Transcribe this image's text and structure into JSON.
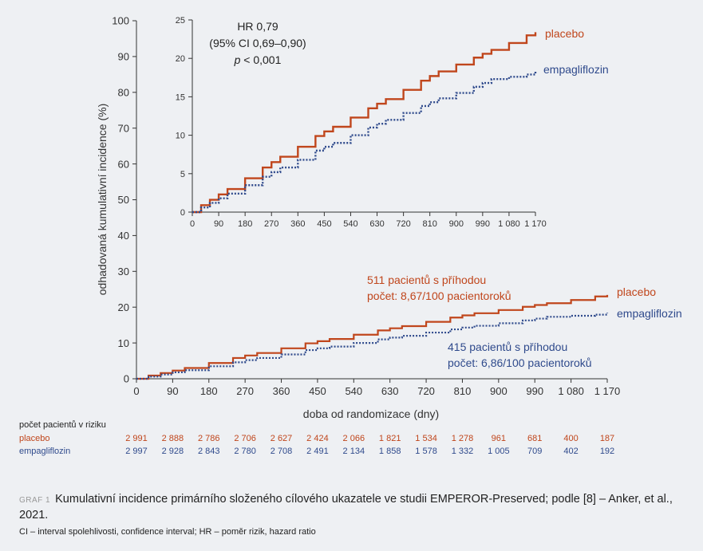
{
  "chart_data": [
    {
      "type": "line",
      "ylabel": "odhadovaná kumulativní incidence (%)",
      "xlabel": "doba od randomizace (dny)",
      "xlim": [
        0,
        1170
      ],
      "ylim": [
        0,
        100
      ],
      "xticks": [
        "0",
        "90",
        "180",
        "270",
        "360",
        "450",
        "540",
        "630",
        "720",
        "810",
        "900",
        "990",
        "1 080",
        "1 170"
      ],
      "yticks": [
        "0",
        "10",
        "20",
        "30",
        "40",
        "50",
        "60",
        "70",
        "80",
        "90",
        "100"
      ],
      "series": [
        {
          "name": "placebo",
          "color": "#c0461c",
          "style": "solid",
          "x": [
            0,
            30,
            60,
            90,
            120,
            180,
            240,
            270,
            300,
            360,
            420,
            450,
            480,
            540,
            600,
            630,
            660,
            720,
            780,
            810,
            840,
            900,
            960,
            990,
            1020,
            1080,
            1140,
            1170
          ],
          "y": [
            0,
            0.9,
            1.6,
            2.3,
            3.0,
            4.4,
            5.8,
            6.5,
            7.2,
            8.5,
            9.9,
            10.5,
            11.1,
            12.3,
            13.5,
            14.1,
            14.7,
            15.9,
            17.1,
            17.7,
            18.3,
            19.2,
            20.1,
            20.6,
            21.1,
            22.0,
            23.0,
            23.4
          ]
        },
        {
          "name": "empagliflozin",
          "color": "#2f4a8c",
          "style": "dotted",
          "x": [
            0,
            30,
            60,
            90,
            120,
            180,
            240,
            270,
            300,
            360,
            420,
            450,
            480,
            540,
            600,
            630,
            660,
            720,
            780,
            810,
            840,
            900,
            960,
            990,
            1020,
            1080,
            1140,
            1170
          ],
          "y": [
            0,
            0.6,
            1.2,
            1.8,
            2.4,
            3.5,
            4.6,
            5.2,
            5.8,
            6.8,
            8.0,
            8.5,
            9.0,
            10.0,
            11.0,
            11.5,
            12.0,
            12.9,
            13.8,
            14.3,
            14.8,
            15.5,
            16.3,
            16.8,
            17.3,
            17.6,
            17.9,
            18.4
          ]
        }
      ],
      "annotations": [
        {
          "lines": [
            "511 pacientů s příhodou",
            "počet: 8,67/100 pacientoroků"
          ],
          "color": "#c0461c"
        },
        {
          "lines": [
            "415 pacientů s příhodou",
            "počet: 6,86/100 pacientoroků"
          ],
          "color": "#2f4a8c"
        }
      ]
    },
    {
      "type": "line",
      "inset": true,
      "xlim": [
        0,
        1170
      ],
      "ylim": [
        0,
        25
      ],
      "xticks": [
        "0",
        "90",
        "180",
        "270",
        "360",
        "450",
        "540",
        "630",
        "720",
        "810",
        "900",
        "990",
        "1 080",
        "1 170"
      ],
      "yticks": [
        "0",
        "5",
        "10",
        "15",
        "20",
        "25"
      ],
      "annotations": [
        {
          "text": "HR 0,79"
        },
        {
          "text": "(95% CI 0,69–0,90)"
        },
        {
          "prefix": "p",
          "text": " < 0,001"
        }
      ]
    }
  ],
  "risk_table": {
    "header": "počet pacientů v riziku",
    "rows": [
      {
        "label": "placebo",
        "color": "#c0461c",
        "values": [
          "2 991",
          "2 888",
          "2 786",
          "2 706",
          "2 627",
          "2 424",
          "2 066",
          "1 821",
          "1 534",
          "1 278",
          "961",
          "681",
          "400",
          "187"
        ]
      },
      {
        "label": "empagliflozin",
        "color": "#2f4a8c",
        "values": [
          "2 997",
          "2 928",
          "2 843",
          "2 780",
          "2 708",
          "2 491",
          "2 134",
          "1 858",
          "1 578",
          "1 332",
          "1 005",
          "709",
          "402",
          "192"
        ]
      }
    ]
  },
  "caption": {
    "tag": "GRAF 1",
    "text": "Kumulativní incidence primárního složeného cílového ukazatele ve studii EMPEROR-Preserved; podle [8] – Anker, et al., 2021."
  },
  "footnote": "CI – interval spolehlivosti, confidence interval; HR – poměr rizik, hazard ratio"
}
